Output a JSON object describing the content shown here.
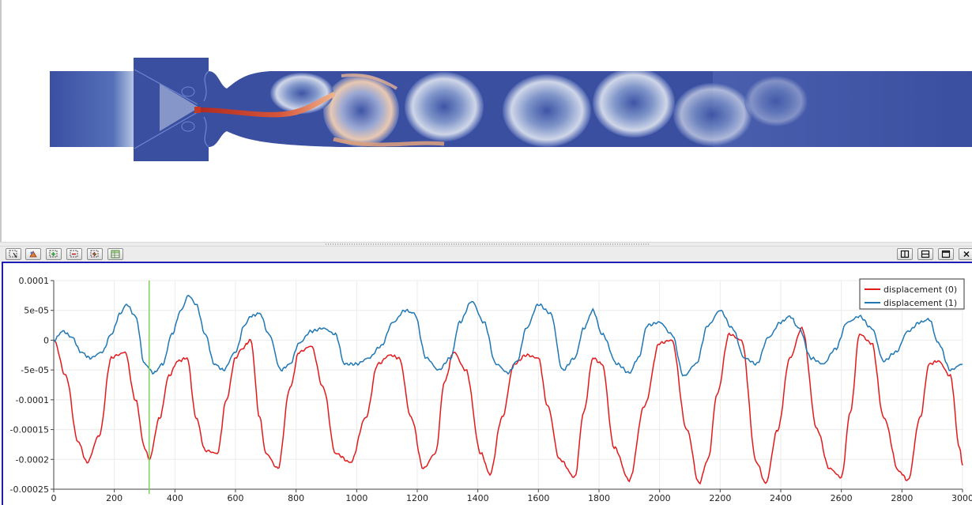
{
  "render_view": {
    "colors": {
      "background_flow": "#3b4fa0",
      "jet_core": "#c0392b",
      "jet_mid": "#e9a77f",
      "vortex_light": "#c9d3e6",
      "wall_outline": "#2f46a8"
    }
  },
  "chart_toolbar": {
    "left_buttons": [
      "select-points-icon",
      "select-cells-icon",
      "add-selection-icon",
      "subtract-selection-icon",
      "toggle-selection-icon",
      "spreadsheet-icon"
    ],
    "right_buttons": [
      "split-horizontal-icon",
      "split-vertical-icon",
      "maximize-icon",
      "close-icon"
    ]
  },
  "chart_data": {
    "type": "line",
    "title": "",
    "xlabel": "",
    "ylabel": "",
    "xlim": [
      0,
      3000
    ],
    "ylim": [
      -0.00025,
      0.0001
    ],
    "x_ticks": [
      "0",
      "200",
      "400",
      "600",
      "800",
      "1000",
      "1200",
      "1400",
      "1600",
      "1800",
      "2000",
      "2200",
      "2400",
      "2600",
      "2800",
      "3000"
    ],
    "y_ticks": [
      "0.0001",
      "5e-05",
      "0",
      "-5e-05",
      "-0.0001",
      "-0.00015",
      "-0.0002",
      "-0.00025"
    ],
    "grid": true,
    "legend_position": "top-right",
    "cursor_x": 315,
    "cursor_color": "#7dd35a",
    "series": [
      {
        "name": "displacement (0)",
        "color": "#e31a1c",
        "x": [
          0,
          40,
          80,
          110,
          150,
          190,
          210,
          235,
          270,
          300,
          315,
          350,
          380,
          410,
          440,
          470,
          500,
          540,
          570,
          600,
          620,
          650,
          680,
          700,
          740,
          780,
          810,
          850,
          890,
          930,
          980,
          1030,
          1070,
          1110,
          1140,
          1180,
          1220,
          1260,
          1290,
          1320,
          1360,
          1410,
          1440,
          1480,
          1520,
          1560,
          1600,
          1630,
          1670,
          1720,
          1750,
          1780,
          1810,
          1850,
          1900,
          1950,
          2000,
          2040,
          2090,
          2130,
          2160,
          2190,
          2230,
          2270,
          2320,
          2350,
          2390,
          2430,
          2470,
          2520,
          2560,
          2600,
          2630,
          2660,
          2700,
          2740,
          2790,
          2820,
          2860,
          2890,
          2920,
          2960,
          2990,
          3000
        ],
        "y": [
          0,
          -6e-05,
          -0.00017,
          -0.000205,
          -0.00016,
          -3e-05,
          -2.5e-05,
          -2e-05,
          -0.0001,
          -0.00018,
          -0.0002,
          -0.00013,
          -6e-05,
          -3.5e-05,
          -3e-05,
          -0.00013,
          -0.000185,
          -0.00019,
          -0.0001,
          -3e-05,
          -1.5e-05,
          0,
          -0.00013,
          -0.00019,
          -0.000215,
          -8e-05,
          -2e-05,
          -1e-05,
          -8e-05,
          -0.00019,
          -0.000205,
          -0.00013,
          -4e-05,
          -2.5e-05,
          -3e-05,
          -0.00013,
          -0.000215,
          -0.00019,
          -7e-05,
          -2e-05,
          -5e-05,
          -0.00019,
          -0.000225,
          -0.00013,
          -4e-05,
          -2.5e-05,
          -3e-05,
          -0.00011,
          -0.0002,
          -0.00023,
          -0.00012,
          -3e-05,
          -4e-05,
          -0.00018,
          -0.000235,
          -0.00011,
          -5e-06,
          0,
          -0.00015,
          -0.00024,
          -0.0002,
          -9e-05,
          1e-05,
          0,
          -0.000205,
          -0.00024,
          -0.00015,
          -3e-05,
          2e-05,
          -0.00015,
          -0.000215,
          -0.00023,
          -0.00012,
          1e-05,
          -5e-06,
          -0.00013,
          -0.00022,
          -0.000235,
          -0.00013,
          -4e-05,
          -3.5e-05,
          -6e-05,
          -0.00018,
          -0.00021
        ]
      },
      {
        "name": "displacement (1)",
        "color": "#1f77b4",
        "x": [
          0,
          30,
          60,
          90,
          120,
          160,
          190,
          220,
          240,
          270,
          300,
          330,
          360,
          390,
          420,
          445,
          470,
          500,
          530,
          560,
          600,
          630,
          650,
          680,
          710,
          750,
          780,
          810,
          850,
          890,
          930,
          960,
          1000,
          1040,
          1080,
          1120,
          1160,
          1190,
          1230,
          1270,
          1310,
          1340,
          1380,
          1420,
          1460,
          1500,
          1530,
          1560,
          1600,
          1640,
          1680,
          1720,
          1750,
          1780,
          1810,
          1860,
          1900,
          1930,
          1960,
          2000,
          2040,
          2080,
          2120,
          2160,
          2200,
          2240,
          2280,
          2320,
          2360,
          2400,
          2430,
          2460,
          2500,
          2540,
          2580,
          2620,
          2660,
          2700,
          2740,
          2780,
          2820,
          2860,
          2890,
          2920,
          2960,
          3000
        ],
        "y": [
          0,
          1.5e-05,
          5e-06,
          -2e-05,
          -3e-05,
          -2e-05,
          1e-05,
          4.5e-05,
          6e-05,
          4e-05,
          -4e-05,
          -5.5e-05,
          -4e-05,
          1e-05,
          5e-05,
          7.5e-05,
          6e-05,
          1e-05,
          -4e-05,
          -5e-05,
          -2e-05,
          2.5e-05,
          4e-05,
          4.5e-05,
          1e-05,
          -5e-05,
          -4e-05,
          -5e-06,
          1.5e-05,
          2e-05,
          1e-05,
          -4e-05,
          -4e-05,
          -3e-05,
          -1e-05,
          3e-05,
          5e-05,
          4.5e-05,
          -3e-05,
          -5e-05,
          -3e-05,
          3e-05,
          6.5e-05,
          3e-05,
          -4e-05,
          -5.5e-05,
          -3.5e-05,
          2e-05,
          6e-05,
          4.5e-05,
          -5e-05,
          -3e-05,
          2e-05,
          5e-05,
          1e-05,
          -4e-05,
          -5.5e-05,
          -3e-05,
          2.5e-05,
          3e-05,
          1e-05,
          -6e-05,
          -4e-05,
          2.5e-05,
          5e-05,
          2e-05,
          -3e-05,
          -4e-05,
          5e-06,
          3e-05,
          4e-05,
          2e-05,
          -3e-05,
          -4e-05,
          -1.5e-05,
          3e-05,
          4e-05,
          2e-05,
          -3.5e-05,
          -2e-05,
          1.5e-05,
          3e-05,
          3.5e-05,
          -5e-06,
          -5e-05,
          -4e-05
        ]
      }
    ]
  }
}
